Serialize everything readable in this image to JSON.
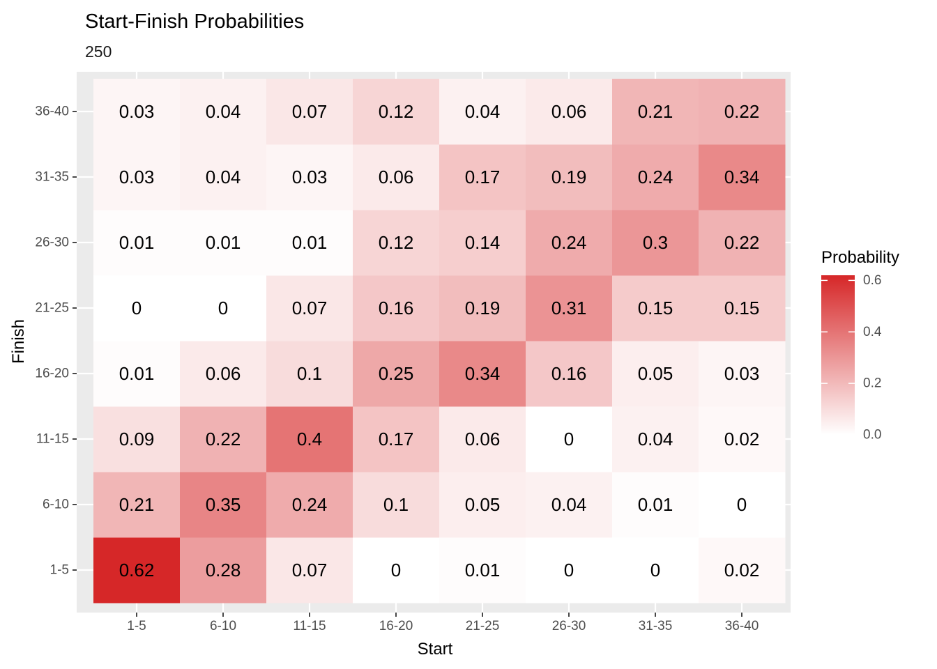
{
  "chart_data": {
    "type": "heatmap",
    "title": "Start-Finish Probabilities",
    "subtitle": "250",
    "xlabel": "Start",
    "ylabel": "Finish",
    "x_categories": [
      "1-5",
      "6-10",
      "11-15",
      "16-20",
      "21-25",
      "26-30",
      "31-35",
      "36-40"
    ],
    "y_categories": [
      "1-5",
      "6-10",
      "11-15",
      "16-20",
      "21-25",
      "26-30",
      "31-35",
      "36-40"
    ],
    "values": [
      [
        "0.62",
        "0.28",
        "0.07",
        "0",
        "0.01",
        "0",
        "0",
        "0.02"
      ],
      [
        "0.21",
        "0.35",
        "0.24",
        "0.1",
        "0.05",
        "0.04",
        "0.01",
        "0"
      ],
      [
        "0.09",
        "0.22",
        "0.4",
        "0.17",
        "0.06",
        "0",
        "0.04",
        "0.02"
      ],
      [
        "0.01",
        "0.06",
        "0.1",
        "0.25",
        "0.34",
        "0.16",
        "0.05",
        "0.03"
      ],
      [
        "0",
        "0",
        "0.07",
        "0.16",
        "0.19",
        "0.31",
        "0.15",
        "0.15"
      ],
      [
        "0.01",
        "0.01",
        "0.01",
        "0.12",
        "0.14",
        "0.24",
        "0.3",
        "0.22"
      ],
      [
        "0.03",
        "0.04",
        "0.03",
        "0.06",
        "0.17",
        "0.19",
        "0.24",
        "0.34"
      ],
      [
        "0.03",
        "0.04",
        "0.07",
        "0.12",
        "0.04",
        "0.06",
        "0.21",
        "0.22"
      ]
    ],
    "legend": {
      "title": "Probability",
      "position": "right",
      "range": [
        0,
        0.62
      ],
      "ticks": [
        "0.0",
        "0.2",
        "0.4",
        "0.6"
      ],
      "low_color": "#ffffff",
      "high_color": "#d62728"
    },
    "panel_background": "#ebebeb",
    "grid_color": "#ffffff"
  }
}
